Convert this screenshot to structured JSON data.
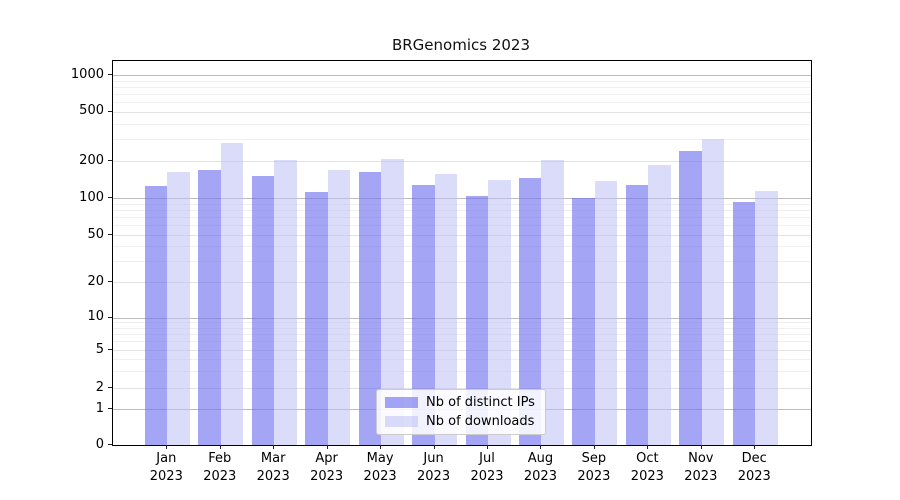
{
  "title": "BRGenomics 2023",
  "chart_data": {
    "type": "bar",
    "title": "BRGenomics 2023",
    "categories": [
      "Jan 2023",
      "Feb 2023",
      "Mar 2023",
      "Apr 2023",
      "May 2023",
      "Jun 2023",
      "Jul 2023",
      "Aug 2023",
      "Sep 2023",
      "Oct 2023",
      "Nov 2023",
      "Dec 2023"
    ],
    "series": [
      {
        "name": "Nb of distinct IPs",
        "color": "#6e6ef0",
        "alpha": 0.62,
        "display_color": "#a9a9f6",
        "values": [
          125,
          168,
          150,
          113,
          164,
          129,
          104,
          146,
          101,
          128,
          241,
          93
        ]
      },
      {
        "name": "Nb of downloads",
        "color": "#bebef5",
        "alpha": 0.55,
        "display_color": "#dadaf8",
        "values": [
          164,
          281,
          203,
          170,
          208,
          156,
          140,
          204,
          138,
          185,
          303,
          115
        ]
      }
    ],
    "xlabel": "",
    "ylabel": "",
    "yscale": "symlog",
    "yticks": [
      0,
      1,
      2,
      5,
      10,
      20,
      50,
      100,
      200,
      500,
      1000
    ],
    "ylim": [
      0,
      1300
    ],
    "grid": true,
    "legend_position": "lower center",
    "grid_colors": {
      "major": "#bdbdbd",
      "labeled_minor": "#e3e3e3",
      "minor": "#f0f0f0"
    }
  }
}
